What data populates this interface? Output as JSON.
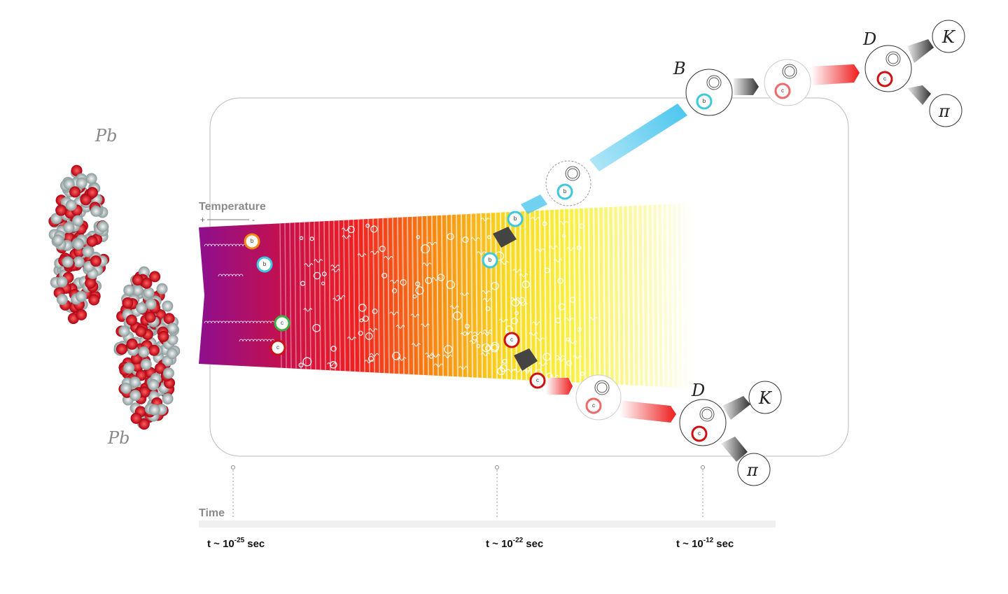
{
  "nuclei": [
    "Pb",
    "Pb"
  ],
  "temperature": {
    "label": "Temperature",
    "plus": "+",
    "minus": "-"
  },
  "time": {
    "label": "Time",
    "marks": [
      {
        "base": "t ~ 10",
        "exponent": "-25",
        "unit": "sec"
      },
      {
        "base": "t ~ 10",
        "exponent": "-22",
        "unit": "sec"
      },
      {
        "base": "t ~ 10",
        "exponent": "-12",
        "unit": "sec"
      }
    ]
  },
  "quarks": [
    "b",
    "b",
    "c",
    "c",
    "b",
    "b",
    "c",
    "c",
    "b",
    "b",
    "c",
    "c",
    "c",
    "c"
  ],
  "hadrons": [
    "B",
    "D",
    "K",
    "π",
    "D",
    "K",
    "π"
  ]
}
